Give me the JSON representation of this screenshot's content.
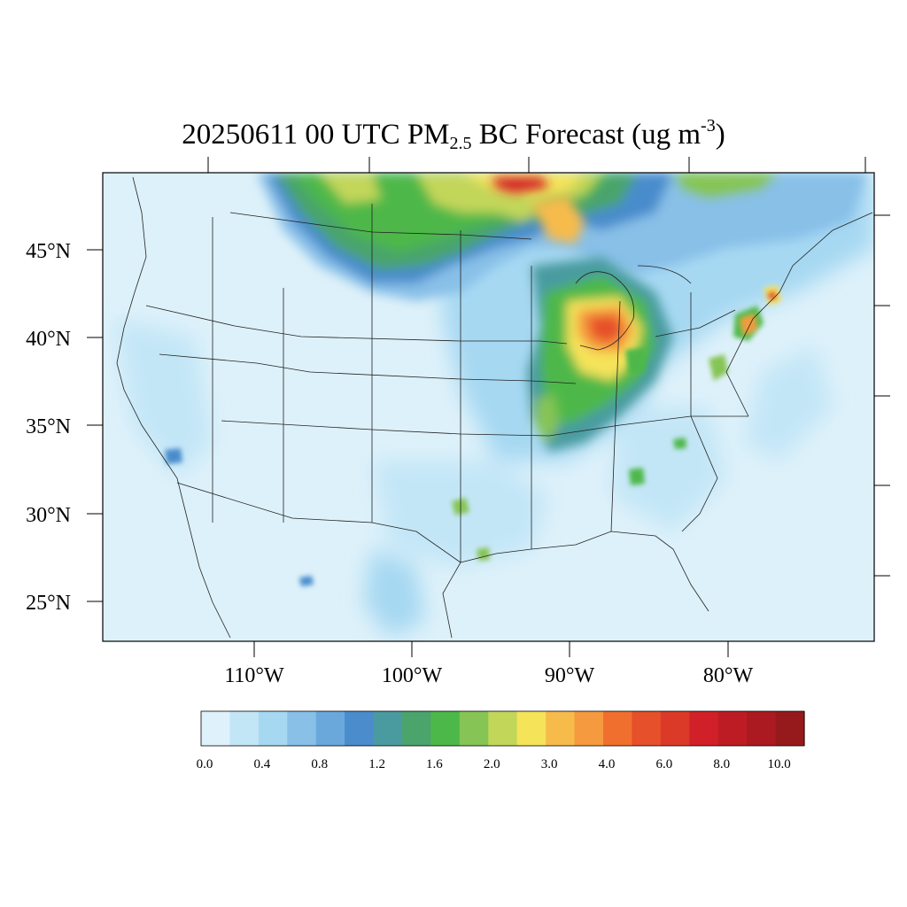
{
  "title": {
    "date": "20250611",
    "time": "00 UTC",
    "species": "PM",
    "species_sub": "2.5",
    "product": "BC Forecast",
    "units_open": "(ug m",
    "units_sup": "-3",
    "units_close": ")"
  },
  "map": {
    "region": "CONUS",
    "lat_labels": [
      "45°N",
      "40°N",
      "35°N",
      "30°N",
      "25°N"
    ],
    "lon_labels": [
      "110°W",
      "100°W",
      "90°W",
      "80°W"
    ],
    "background_color": "#ddf1fa"
  },
  "colorbar": {
    "colors": [
      "#dff2fb",
      "#c3e6f7",
      "#a6d8f2",
      "#88c0e8",
      "#6aa8dc",
      "#4a8ccc",
      "#4a9ba0",
      "#4aa46c",
      "#4db84a",
      "#86c455",
      "#c2d65a",
      "#f5e35a",
      "#f7bb4c",
      "#f59a3e",
      "#f06f2e",
      "#e6502a",
      "#dc3a28",
      "#d22028",
      "#be1c24",
      "#aa1a20",
      "#961a1c"
    ],
    "labels": [
      "0.0",
      "0.4",
      "0.8",
      "1.2",
      "1.6",
      "2.0",
      "3.0",
      "4.0",
      "6.0",
      "8.0",
      "10.0"
    ]
  }
}
